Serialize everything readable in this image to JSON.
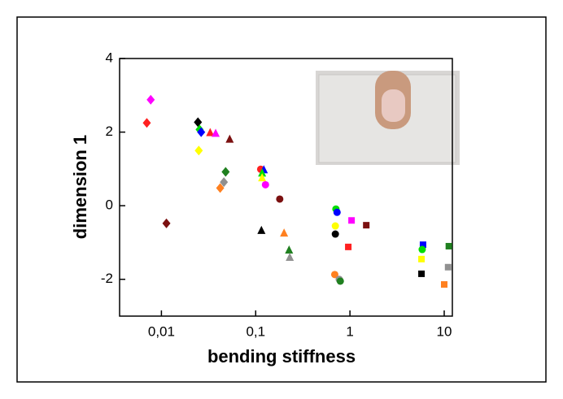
{
  "chart_data": {
    "type": "scatter",
    "x_label": "bending stiffness",
    "y_label": "dimension 1",
    "log_x": true,
    "xlim": [
      0.0036,
      12.2
    ],
    "xticks": [
      {
        "value": 0.01,
        "label": "0,01"
      },
      {
        "value": 0.1,
        "label": "0,1"
      },
      1,
      10
    ],
    "ylim": [
      -3,
      4
    ],
    "yticks": [
      -2,
      0,
      2,
      4
    ],
    "points": [
      {
        "x": 0.0077,
        "y": 2.88,
        "color": "#ff00ff",
        "marker": "diamond"
      },
      {
        "x": 0.007,
        "y": 2.25,
        "color": "#ff2020",
        "marker": "diamond"
      },
      {
        "x": 0.0113,
        "y": -0.48,
        "color": "#7b1010",
        "marker": "diamond"
      },
      {
        "x": 0.0244,
        "y": 2.27,
        "color": "#000000",
        "marker": "diamond"
      },
      {
        "x": 0.0254,
        "y": 2.07,
        "color": "#00dd00",
        "marker": "diamond"
      },
      {
        "x": 0.0264,
        "y": 2.0,
        "color": "#0000ff",
        "marker": "diamond"
      },
      {
        "x": 0.0249,
        "y": 1.5,
        "color": "#ffff00",
        "marker": "diamond"
      },
      {
        "x": 0.0329,
        "y": 1.98,
        "color": "#ff2020",
        "marker": "triangle"
      },
      {
        "x": 0.0376,
        "y": 1.96,
        "color": "#ff00ff",
        "marker": "triangle"
      },
      {
        "x": 0.053,
        "y": 1.8,
        "color": "#7b1010",
        "marker": "triangle"
      },
      {
        "x": 0.048,
        "y": 0.92,
        "color": "#208020",
        "marker": "diamond"
      },
      {
        "x": 0.046,
        "y": 0.64,
        "color": "#909090",
        "marker": "diamond"
      },
      {
        "x": 0.042,
        "y": 0.48,
        "color": "#ff8020",
        "marker": "diamond"
      },
      {
        "x": 0.113,
        "y": 0.99,
        "color": "#ff2020",
        "marker": "circle"
      },
      {
        "x": 0.122,
        "y": 0.97,
        "color": "#0000ff",
        "marker": "triangle"
      },
      {
        "x": 0.117,
        "y": 0.88,
        "color": "#00dd00",
        "marker": "triangle"
      },
      {
        "x": 0.117,
        "y": 0.75,
        "color": "#ffff00",
        "marker": "triangle"
      },
      {
        "x": 0.127,
        "y": 0.57,
        "color": "#ff00ff",
        "marker": "circle"
      },
      {
        "x": 0.18,
        "y": 0.18,
        "color": "#7b1010",
        "marker": "circle"
      },
      {
        "x": 0.115,
        "y": -0.68,
        "color": "#000000",
        "marker": "triangle"
      },
      {
        "x": 0.2,
        "y": -0.75,
        "color": "#ff8020",
        "marker": "triangle"
      },
      {
        "x": 0.226,
        "y": -1.21,
        "color": "#208020",
        "marker": "triangle"
      },
      {
        "x": 0.23,
        "y": -1.41,
        "color": "#909090",
        "marker": "triangle"
      },
      {
        "x": 0.71,
        "y": -0.09,
        "color": "#00dd00",
        "marker": "circle"
      },
      {
        "x": 0.73,
        "y": -0.18,
        "color": "#0000ff",
        "marker": "circle"
      },
      {
        "x": 0.7,
        "y": -0.55,
        "color": "#ffff00",
        "marker": "circle"
      },
      {
        "x": 0.7,
        "y": -0.77,
        "color": "#000000",
        "marker": "circle"
      },
      {
        "x": 1.04,
        "y": -0.4,
        "color": "#ff00ff",
        "marker": "square"
      },
      {
        "x": 1.49,
        "y": -0.53,
        "color": "#7b1010",
        "marker": "square"
      },
      {
        "x": 0.96,
        "y": -1.12,
        "color": "#ff2020",
        "marker": "square"
      },
      {
        "x": 0.69,
        "y": -1.87,
        "color": "#ff8020",
        "marker": "circle"
      },
      {
        "x": 0.77,
        "y": -2.0,
        "color": "#909090",
        "marker": "circle"
      },
      {
        "x": 0.79,
        "y": -2.05,
        "color": "#208020",
        "marker": "circle"
      },
      {
        "x": 5.96,
        "y": -1.06,
        "color": "#0000ff",
        "marker": "square"
      },
      {
        "x": 5.84,
        "y": -1.19,
        "color": "#00dd00",
        "marker": "circle"
      },
      {
        "x": 5.74,
        "y": -1.45,
        "color": "#ffff00",
        "marker": "square"
      },
      {
        "x": 5.74,
        "y": -1.85,
        "color": "#000000",
        "marker": "square"
      },
      {
        "x": 11.2,
        "y": -1.1,
        "color": "#208020",
        "marker": "square"
      },
      {
        "x": 11.0,
        "y": -1.67,
        "color": "#909090",
        "marker": "square"
      },
      {
        "x": 10.0,
        "y": -2.14,
        "color": "#ff8020",
        "marker": "square"
      }
    ]
  }
}
